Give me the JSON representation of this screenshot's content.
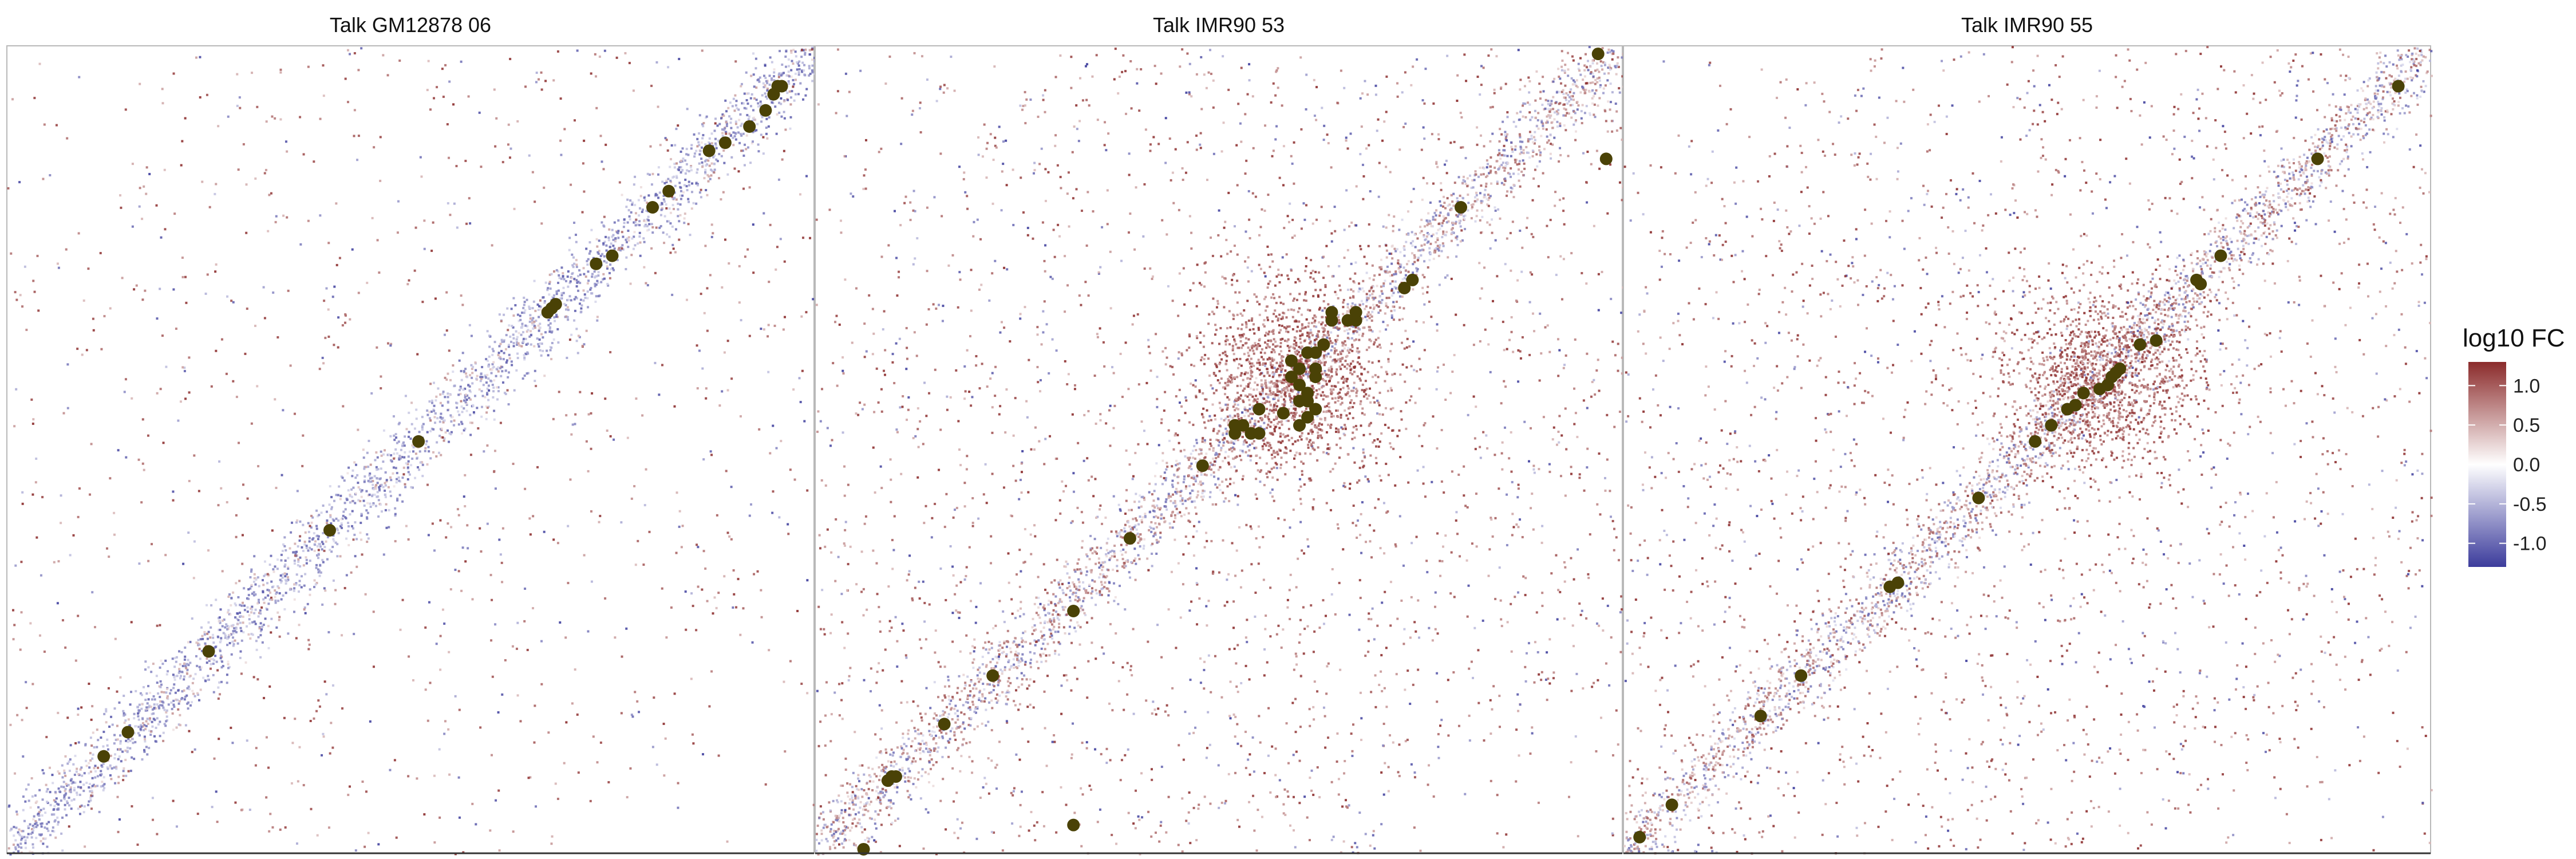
{
  "colors": {
    "high": "#8b2b2b",
    "mid": "#ffffff",
    "low": "#3c3c9c",
    "point": "#4a4206",
    "panel_border": "#b9b9b9",
    "axis_line": "#333333"
  },
  "legend": {
    "title": "log10 FC",
    "ticks": [
      {
        "value": 1.0,
        "label": "1.0"
      },
      {
        "value": 0.5,
        "label": "0.5"
      },
      {
        "value": 0.0,
        "label": "0.0"
      },
      {
        "value": -0.5,
        "label": "-0.5"
      },
      {
        "value": -1.0,
        "label": "-1.0"
      }
    ],
    "range": [
      -1.3,
      1.3
    ],
    "placement": "right"
  },
  "chart_data": [
    {
      "type": "heatmap",
      "title": "Talk GM12878 06",
      "xlabel": "",
      "ylabel": "",
      "xlim": [
        0,
        100
      ],
      "ylim": [
        0,
        100
      ],
      "grid": false,
      "color_scale": "log10 FC",
      "diagonal_sign": "negative",
      "background": "sparse positive and negative values, mostly positive away from diagonal",
      "points": [
        [
          12,
          12
        ],
        [
          15,
          15
        ],
        [
          25,
          25
        ],
        [
          40,
          40
        ],
        [
          51,
          51
        ],
        [
          67,
          67
        ],
        [
          67.5,
          67.5
        ],
        [
          68,
          68
        ],
        [
          73,
          73
        ],
        [
          75,
          74
        ],
        [
          80,
          80
        ],
        [
          82,
          82
        ],
        [
          87,
          87
        ],
        [
          89,
          88
        ],
        [
          92,
          90
        ],
        [
          94,
          92
        ],
        [
          95,
          94
        ],
        [
          95.5,
          95
        ],
        [
          96,
          95
        ]
      ]
    },
    {
      "type": "heatmap",
      "title": "Talk IMR90 53",
      "xlabel": "",
      "ylabel": "",
      "xlim": [
        0,
        100
      ],
      "ylim": [
        0,
        100
      ],
      "grid": false,
      "color_scale": "log10 FC",
      "diagonal_sign": "mixed",
      "background": "positive enrichment cluster near 55-65, scattered positive points elsewhere",
      "points": [
        [
          6,
          0.5
        ],
        [
          9,
          9
        ],
        [
          9.5,
          9.5
        ],
        [
          10,
          9.5
        ],
        [
          16,
          16
        ],
        [
          22,
          22
        ],
        [
          32,
          3.5
        ],
        [
          32,
          30
        ],
        [
          39,
          39
        ],
        [
          48,
          48
        ],
        [
          52,
          52
        ],
        [
          52,
          53
        ],
        [
          53,
          53
        ],
        [
          54,
          52
        ],
        [
          55,
          52
        ],
        [
          55,
          55
        ],
        [
          58,
          54.5
        ],
        [
          59,
          59
        ],
        [
          59,
          61
        ],
        [
          60,
          53
        ],
        [
          60,
          56
        ],
        [
          60,
          58
        ],
        [
          60,
          60
        ],
        [
          61,
          54
        ],
        [
          61,
          56
        ],
        [
          61,
          57
        ],
        [
          61,
          62
        ],
        [
          62,
          55
        ],
        [
          62,
          59
        ],
        [
          62,
          60
        ],
        [
          62,
          62
        ],
        [
          63,
          63
        ],
        [
          64,
          66
        ],
        [
          64,
          67
        ],
        [
          66,
          66
        ],
        [
          67,
          66
        ],
        [
          67,
          67
        ],
        [
          73,
          70
        ],
        [
          74,
          71
        ],
        [
          80,
          80
        ],
        [
          97,
          99
        ],
        [
          98,
          86
        ]
      ]
    },
    {
      "type": "heatmap",
      "title": "Talk IMR90 55",
      "xlabel": "",
      "ylabel": "",
      "xlim": [
        0,
        100
      ],
      "ylim": [
        0,
        100
      ],
      "grid": false,
      "color_scale": "log10 FC",
      "diagonal_sign": "mixed",
      "background": "positive enrichment cluster near 55-65, positive values along diagonal",
      "points": [
        [
          2,
          2
        ],
        [
          6,
          6
        ],
        [
          17,
          17
        ],
        [
          22,
          22
        ],
        [
          33,
          33
        ],
        [
          34,
          33.5
        ],
        [
          44,
          44
        ],
        [
          51,
          51
        ],
        [
          53,
          53
        ],
        [
          55,
          55
        ],
        [
          56,
          55.5
        ],
        [
          57,
          57
        ],
        [
          59,
          57.5
        ],
        [
          60,
          58
        ],
        [
          60.5,
          59
        ],
        [
          61,
          59.5
        ],
        [
          61.5,
          60
        ],
        [
          64,
          63
        ],
        [
          66,
          63.5
        ],
        [
          71,
          71
        ],
        [
          71.5,
          70.5
        ],
        [
          74,
          74
        ],
        [
          86,
          86
        ],
        [
          96,
          95
        ]
      ]
    }
  ]
}
